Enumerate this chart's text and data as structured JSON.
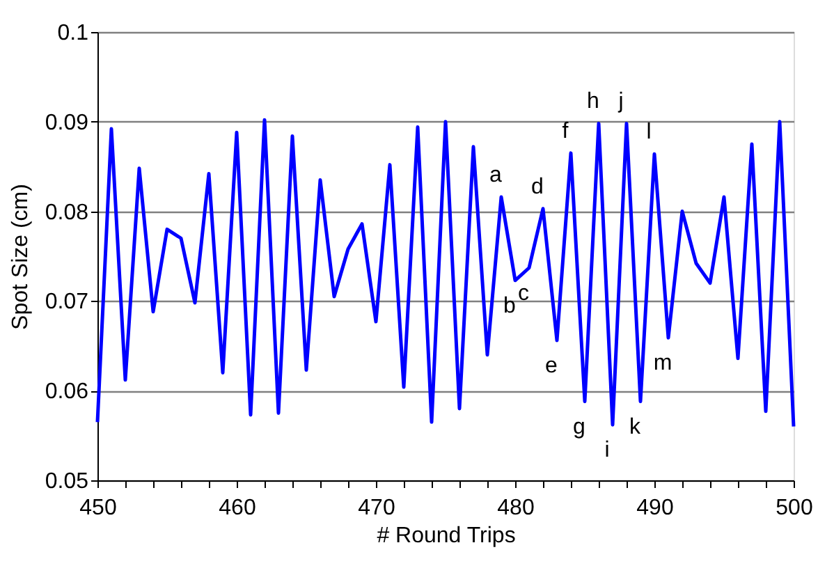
{
  "chart_data": {
    "type": "line",
    "xlabel": "# Round Trips",
    "ylabel": "Spot Size (cm)",
    "x": [
      450,
      451,
      452,
      453,
      454,
      455,
      456,
      457,
      458,
      459,
      460,
      461,
      462,
      463,
      464,
      465,
      466,
      467,
      468,
      469,
      470,
      471,
      472,
      473,
      474,
      475,
      476,
      477,
      478,
      479,
      480,
      481,
      482,
      483,
      484,
      485,
      486,
      487,
      488,
      489,
      490,
      491,
      492,
      493,
      494,
      495,
      496,
      497,
      498,
      499,
      500
    ],
    "series": [
      {
        "color": "#0000ff",
        "values": [
          0.0565,
          0.0892,
          0.0612,
          0.0848,
          0.0688,
          0.078,
          0.077,
          0.0698,
          0.0842,
          0.062,
          0.0888,
          0.0573,
          0.0902,
          0.0575,
          0.0884,
          0.0623,
          0.0835,
          0.0705,
          0.0758,
          0.0786,
          0.0677,
          0.0852,
          0.0604,
          0.0894,
          0.0565,
          0.09,
          0.058,
          0.0872,
          0.064,
          0.0816,
          0.0723,
          0.0737,
          0.0803,
          0.0656,
          0.0865,
          0.0588,
          0.0898,
          0.0562,
          0.0898,
          0.0588,
          0.0864,
          0.0659,
          0.08,
          0.0742,
          0.072,
          0.0816,
          0.0636,
          0.0875,
          0.0577,
          0.09,
          0.056
        ]
      }
    ],
    "xlim": [
      450,
      500
    ],
    "xticks": [
      450,
      {
        "value": 452,
        "label": null
      },
      {
        "value": 454,
        "label": null
      },
      {
        "value": 456,
        "label": null
      },
      {
        "value": 458,
        "label": null
      },
      460,
      {
        "value": 462,
        "label": null
      },
      {
        "value": 464,
        "label": null
      },
      {
        "value": 466,
        "label": null
      },
      {
        "value": 468,
        "label": null
      },
      470,
      {
        "value": 472,
        "label": null
      },
      {
        "value": 474,
        "label": null
      },
      {
        "value": 476,
        "label": null
      },
      {
        "value": 478,
        "label": null
      },
      480,
      {
        "value": 482,
        "label": null
      },
      {
        "value": 484,
        "label": null
      },
      {
        "value": 486,
        "label": null
      },
      {
        "value": 488,
        "label": null
      },
      490,
      {
        "value": 492,
        "label": null
      },
      {
        "value": 494,
        "label": null
      },
      {
        "value": 496,
        "label": null
      },
      {
        "value": 498,
        "label": null
      },
      500
    ],
    "ylim": [
      0.05,
      0.1
    ],
    "yticks": [
      {
        "value": 0.05,
        "label": "0.05"
      },
      {
        "value": 0.06,
        "label": "0.06"
      },
      {
        "value": 0.07,
        "label": "0.07"
      },
      {
        "value": 0.08,
        "label": "0.08"
      },
      {
        "value": 0.09,
        "label": "0.09"
      },
      {
        "value": 0.1,
        "label": "0.1"
      }
    ],
    "grid": "y",
    "marker": "none",
    "line_style": "solid",
    "annotations": [
      {
        "text": "a",
        "x": 479,
        "y": 0.0816
      },
      {
        "text": "b",
        "x": 480,
        "y": 0.0723
      },
      {
        "text": "c",
        "x": 481,
        "y": 0.0737
      },
      {
        "text": "d",
        "x": 482,
        "y": 0.0803
      },
      {
        "text": "e",
        "x": 483,
        "y": 0.0656
      },
      {
        "text": "f",
        "x": 484,
        "y": 0.0865
      },
      {
        "text": "g",
        "x": 485,
        "y": 0.0588
      },
      {
        "text": "h",
        "x": 486,
        "y": 0.0898
      },
      {
        "text": "i",
        "x": 487,
        "y": 0.0562
      },
      {
        "text": "j",
        "x": 488,
        "y": 0.0898
      },
      {
        "text": "k",
        "x": 489,
        "y": 0.0588
      },
      {
        "text": "l",
        "x": 490,
        "y": 0.0864
      },
      {
        "text": "m",
        "x": 491,
        "y": 0.0659
      }
    ]
  }
}
